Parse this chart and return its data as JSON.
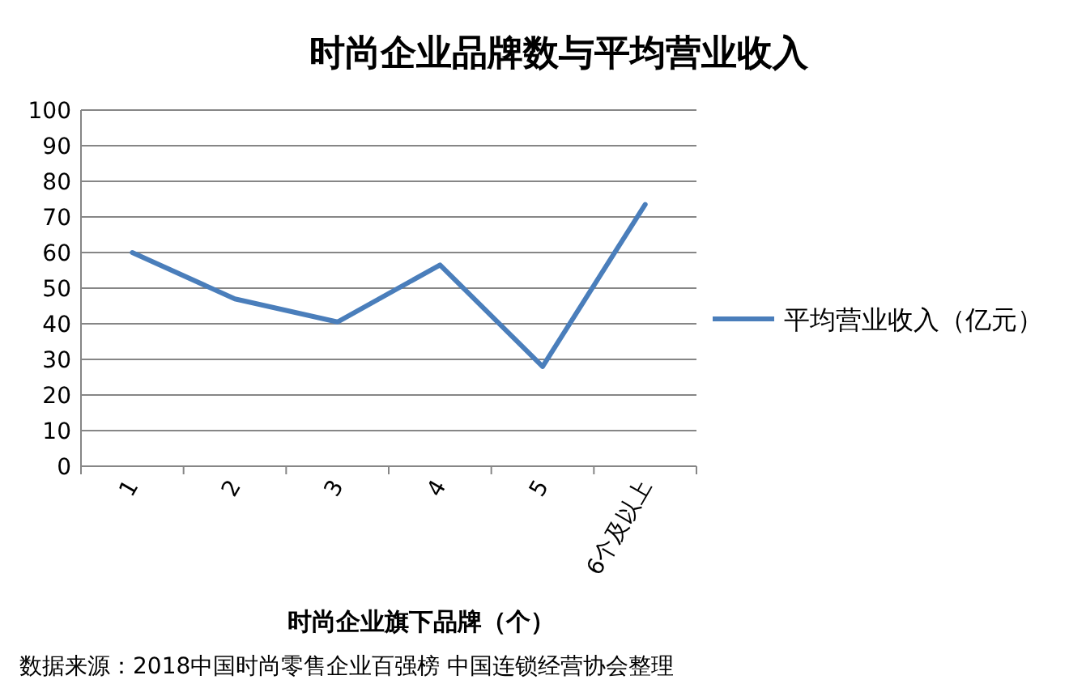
{
  "chart_data": {
    "type": "line",
    "title": "时尚企业品牌数与平均营业收入",
    "xlabel": "时尚企业旗下品牌（个）",
    "categories": [
      "1",
      "2",
      "3",
      "4",
      "5",
      "6个及以上"
    ],
    "series": [
      {
        "name": "平均营业收入（亿元）",
        "color": "#4a7ebb",
        "values": [
          60,
          47,
          40.5,
          56.5,
          28,
          73.5
        ]
      }
    ],
    "ylim": [
      0,
      100
    ],
    "yticks": [
      0,
      10,
      20,
      30,
      40,
      50,
      60,
      70,
      80,
      90,
      100
    ],
    "grid": "y",
    "legend": "right",
    "marker": "none",
    "line_style": "solid",
    "annotations": [
      "数据来源：2018中国时尚零售企业百强榜 中国连锁经营协会整理"
    ]
  }
}
